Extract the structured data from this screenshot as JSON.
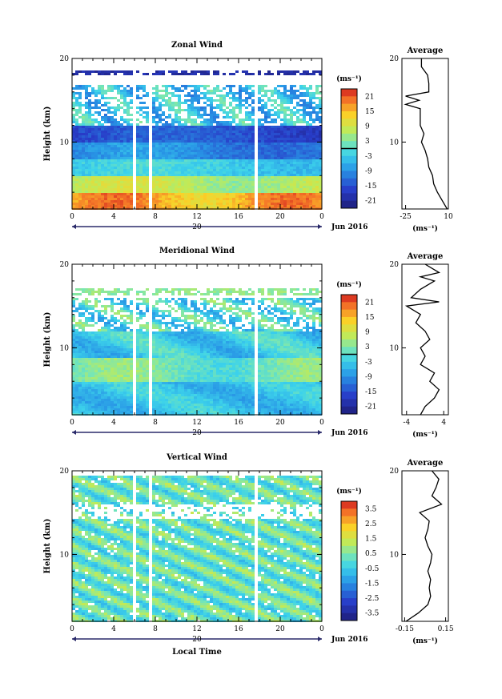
{
  "chart_data": [
    {
      "type": "heatmap",
      "title": "Zonal Wind",
      "ylabel": "Height (km)",
      "xticks": [
        "0",
        "4",
        "8",
        "12",
        "16",
        "20",
        "0"
      ],
      "yticks": [
        "10",
        "20"
      ],
      "ylim": [
        2,
        20
      ],
      "date_label": "Jun 2016",
      "day_label": "20",
      "colorbar_unit": "(ms⁻¹)",
      "colorbar_ticks": [
        "21",
        "15",
        "9",
        "3",
        "-3",
        "-9",
        "-15",
        "-21"
      ],
      "colorbar_range": [
        -24,
        24
      ],
      "profile": {
        "title": "Average",
        "xlabel": "(ms⁻¹)",
        "xticks": [
          "-25",
          "10"
        ],
        "yticks": [
          "10",
          "20"
        ],
        "xlim": [
          -28,
          10
        ],
        "heights": [
          2,
          3,
          4,
          5,
          6,
          7,
          8,
          9,
          10,
          11,
          12,
          13,
          14,
          14.5,
          15,
          15.5,
          16,
          17,
          18,
          19,
          20
        ],
        "values": [
          9,
          5,
          1,
          -2,
          -3,
          -6,
          -7,
          -9,
          -12,
          -10,
          -13,
          -13,
          -13,
          -25,
          -14,
          -25,
          -6,
          -6,
          -7,
          -12,
          -12
        ]
      }
    },
    {
      "type": "heatmap",
      "title": "Meridional Wind",
      "ylabel": "Height (km)",
      "xticks": [
        "0",
        "4",
        "8",
        "12",
        "16",
        "20",
        "0"
      ],
      "yticks": [
        "10",
        "20"
      ],
      "ylim": [
        2,
        20
      ],
      "date_label": "Jun 2016",
      "day_label": "20",
      "colorbar_unit": "(ms⁻¹)",
      "colorbar_ticks": [
        "21",
        "15",
        "9",
        "3",
        "-3",
        "-9",
        "-15",
        "-21"
      ],
      "colorbar_range": [
        -24,
        24
      ],
      "profile": {
        "title": "Average",
        "xlabel": "(ms⁻¹)",
        "xticks": [
          "-4",
          "4"
        ],
        "yticks": [
          "10",
          "20"
        ],
        "xlim": [
          -5,
          5
        ],
        "heights": [
          2,
          3,
          4,
          5,
          6,
          7,
          8,
          9,
          10,
          11,
          12,
          13,
          14,
          15,
          15.5,
          16,
          17,
          18,
          18.5,
          19,
          20
        ],
        "values": [
          -1,
          0,
          2,
          3,
          1,
          2,
          -1,
          0,
          -1,
          1,
          0,
          -2,
          -1,
          -4,
          3,
          -3,
          -1,
          2,
          -1,
          3,
          0
        ]
      }
    },
    {
      "type": "heatmap",
      "title": "Vertical Wind",
      "ylabel": "Height (km)",
      "xlabel": "Local Time",
      "xticks": [
        "0",
        "4",
        "8",
        "12",
        "16",
        "20",
        "0"
      ],
      "yticks": [
        "10",
        "20"
      ],
      "ylim": [
        2,
        20
      ],
      "date_label": "Jun 2016",
      "day_label": "20",
      "colorbar_unit": "(ms⁻¹)",
      "colorbar_ticks": [
        "3.5",
        "2.5",
        "1.5",
        "0.5",
        "-0.5",
        "-1.5",
        "-2.5",
        "-3.5"
      ],
      "colorbar_range": [
        -4,
        4
      ],
      "profile": {
        "title": "Average",
        "xlabel": "(ms⁻¹)",
        "xticks": [
          "-0.15",
          "0.15"
        ],
        "yticks": [
          "10",
          "20"
        ],
        "xlim": [
          -0.17,
          0.17
        ],
        "heights": [
          2,
          3,
          4,
          5,
          6,
          7,
          8,
          9,
          10,
          11,
          12,
          13,
          14,
          15,
          16,
          17,
          18,
          19,
          20
        ],
        "values": [
          -0.14,
          -0.05,
          0.02,
          0.04,
          0.03,
          0.04,
          0.02,
          0.04,
          0.05,
          0.02,
          0.0,
          0.02,
          0.03,
          -0.04,
          0.12,
          0.05,
          0.08,
          0.1,
          0.05
        ]
      }
    }
  ]
}
